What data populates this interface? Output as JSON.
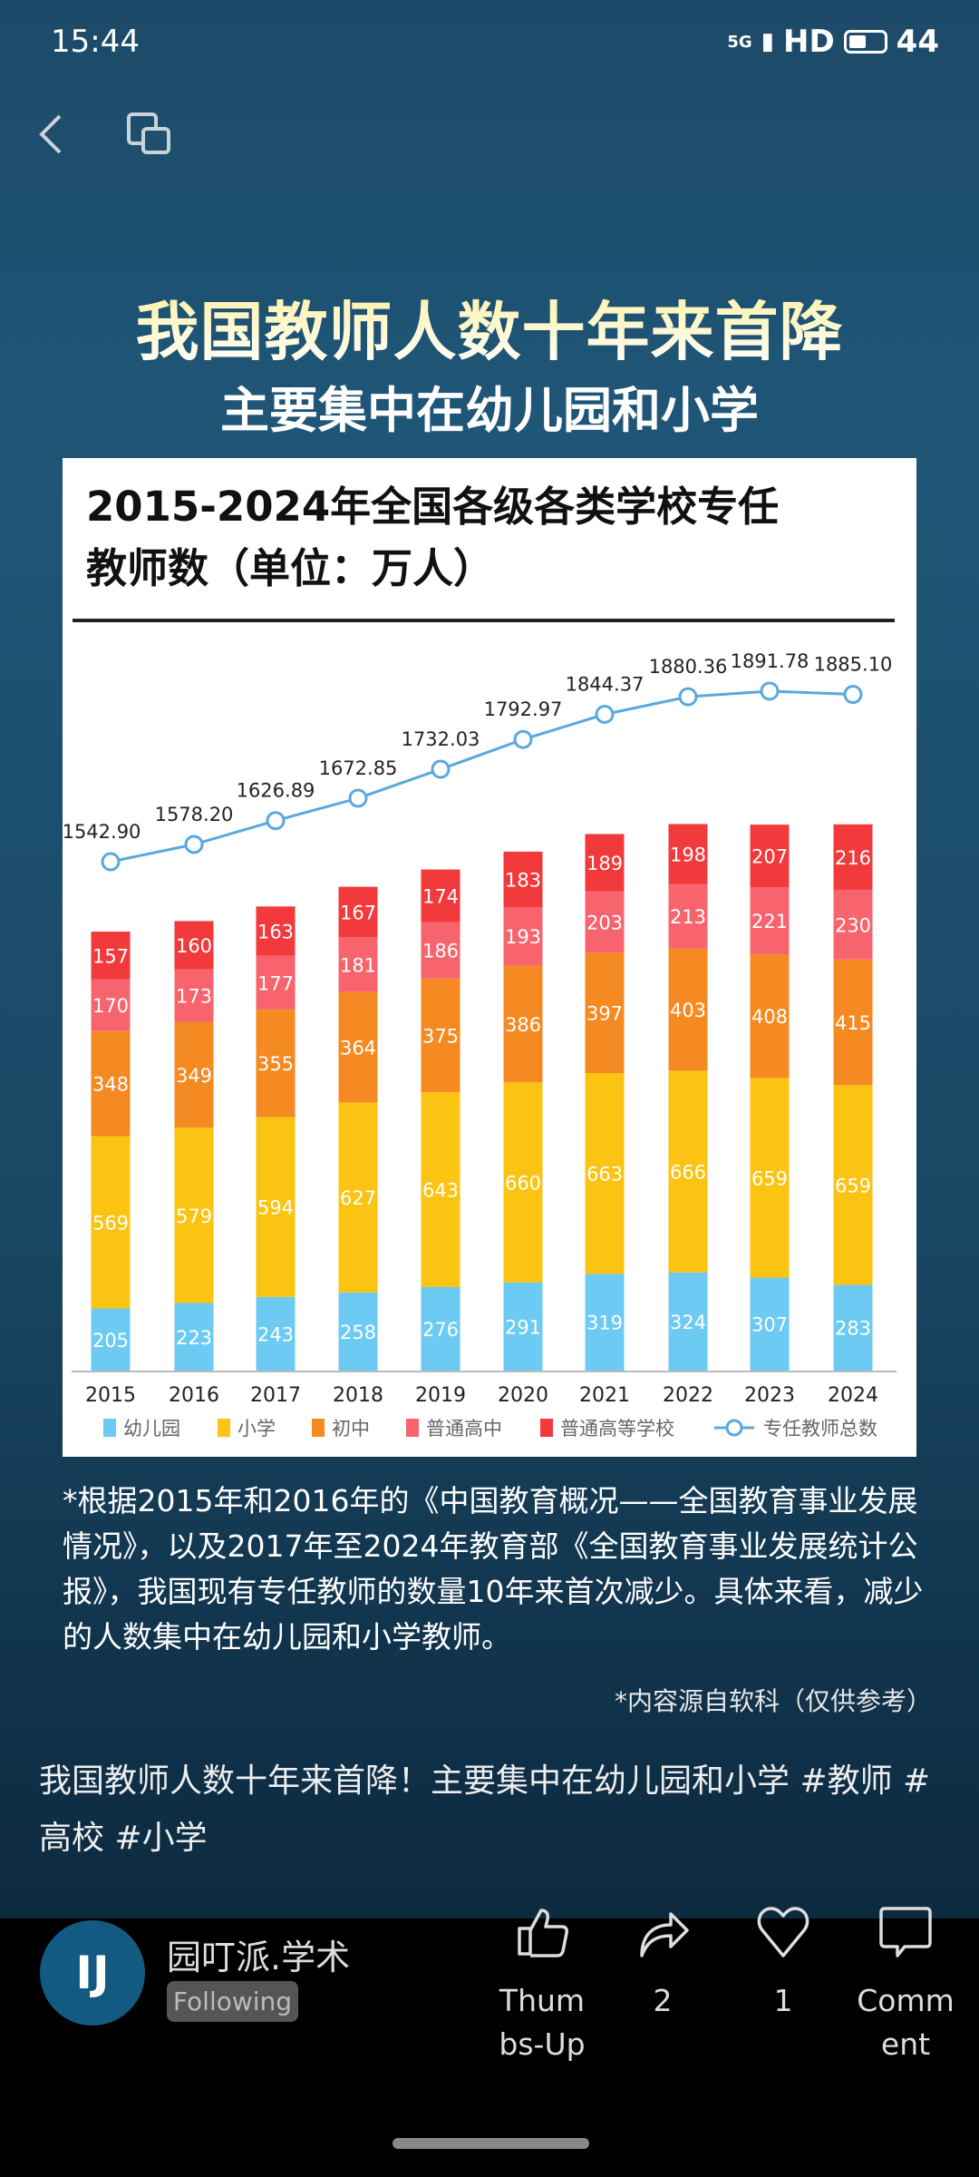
{
  "status_bar": {
    "time": "15:44",
    "network": "5G",
    "hd": "HD",
    "battery": "44"
  },
  "nav": {
    "back_icon": "chevron-left-icon",
    "copy_icon": "copy-icon"
  },
  "banner": {
    "line1": "我国教师人数十年来首降",
    "line2": "主要集中在幼儿园和小学"
  },
  "chart_data": {
    "type": "bar",
    "stacked": true,
    "title": "2015-2024年全国各级各类学校专任教师数（单位：万人）",
    "title_lines": [
      "2015-2024年全国各级各类学校专任",
      "教师数（单位：万人）"
    ],
    "categories": [
      "2015",
      "2016",
      "2017",
      "2018",
      "2019",
      "2020",
      "2021",
      "2022",
      "2023",
      "2024"
    ],
    "series": [
      {
        "name": "幼儿园",
        "color": "#6ccaf3",
        "values": [
          205,
          223,
          243,
          258,
          276,
          291,
          319,
          324,
          307,
          283
        ]
      },
      {
        "name": "小学",
        "color": "#fbc312",
        "values": [
          569,
          579,
          594,
          627,
          643,
          660,
          663,
          666,
          659,
          659
        ]
      },
      {
        "name": "初中",
        "color": "#f58a22",
        "values": [
          348,
          349,
          355,
          364,
          375,
          386,
          397,
          403,
          408,
          415
        ]
      },
      {
        "name": "普通高中",
        "color": "#f7646e",
        "values": [
          170,
          173,
          177,
          181,
          186,
          193,
          203,
          213,
          221,
          230
        ]
      },
      {
        "name": "普通高等学校",
        "color": "#f23a3c",
        "values": [
          157,
          160,
          163,
          167,
          174,
          183,
          189,
          198,
          207,
          216
        ]
      }
    ],
    "line": {
      "name": "专任教师总数",
      "type": "line",
      "color": "#5aa8de",
      "values": [
        1542.9,
        1578.2,
        1626.89,
        1672.85,
        1732.03,
        1792.97,
        1844.37,
        1880.36,
        1891.78,
        1885.1
      ],
      "labels": [
        "1542.90",
        "1578.20",
        "1626.89",
        "1672.85",
        "1732.03",
        "1792.97",
        "1844.37",
        "1880.36",
        "1891.78",
        "1885.10"
      ]
    },
    "legend_placement": "bottom",
    "grid": false
  },
  "note": "*根据2015年和2016年的《中国教育概况——全国教育事业发展情况》，以及2017年至2024年教育部《全国教育事业发展统计公报》，我国现有专任教师的数量10年来首次减少。具体来看，减少的人数集中在幼儿园和小学教师。",
  "source": "*内容源自软科（仅供参考）",
  "caption": "我国教师人数十年来首降！主要集中在幼儿园和小学 #教师 #高校 #小学",
  "author": {
    "name": "园叮派.学术",
    "follow_label": "Following",
    "avatar_text": "IJ"
  },
  "actions": {
    "like": "Thumbs-Up",
    "share": "2",
    "favorite": "1",
    "comment": "Comment"
  }
}
